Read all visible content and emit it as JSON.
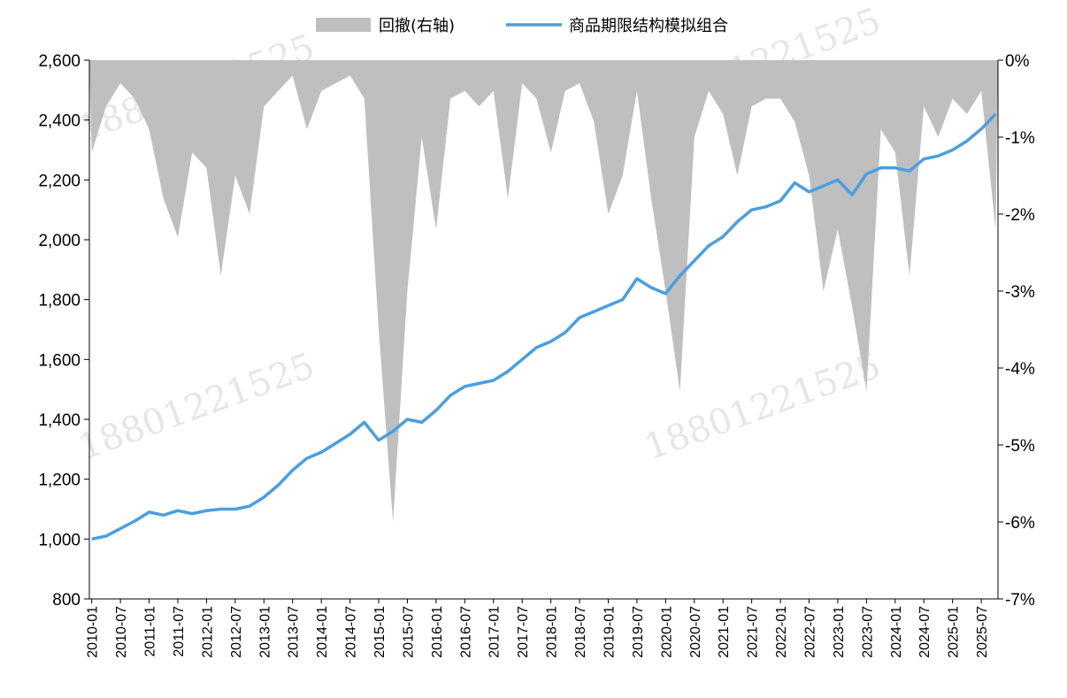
{
  "chart_data": {
    "type": "line",
    "title": "",
    "watermark": "18801221525",
    "legend": {
      "placement": "top-center",
      "items": [
        {
          "key": "drawdown",
          "label": "回撤(右轴)",
          "kind": "area",
          "color": "#bfbfbf"
        },
        {
          "key": "nav",
          "label": "商品期限结构模拟组合",
          "kind": "line",
          "color": "#4a9fe0"
        }
      ]
    },
    "y_left": {
      "range": [
        800,
        2600
      ],
      "ticks": [
        800,
        1000,
        1200,
        1400,
        1600,
        1800,
        2000,
        2200,
        2400,
        2600
      ],
      "tick_labels": [
        "800",
        "1,000",
        "1,200",
        "1,400",
        "1,600",
        "1,800",
        "2,000",
        "2,200",
        "2,400",
        "2,600"
      ]
    },
    "y_right": {
      "range": [
        -7,
        0
      ],
      "ticks": [
        0,
        -1,
        -2,
        -3,
        -4,
        -5,
        -6,
        -7
      ],
      "tick_labels": [
        "0%",
        "-1%",
        "-2%",
        "-3%",
        "-4%",
        "-5%",
        "-6%",
        "-7%"
      ]
    },
    "x_axis": {
      "tick_labels": [
        "2010-01",
        "2010-07",
        "2011-01",
        "2011-07",
        "2012-01",
        "2012-07",
        "2013-01",
        "2013-07",
        "2014-01",
        "2014-07",
        "2015-01",
        "2015-07",
        "2016-01",
        "2016-07",
        "2017-01",
        "2017-07",
        "2018-01",
        "2018-07",
        "2019-01",
        "2019-07",
        "2020-01",
        "2020-07",
        "2021-01",
        "2021-07",
        "2022-01",
        "2022-07",
        "2023-01",
        "2023-07",
        "2024-01",
        "2024-07",
        "2025-01",
        "2025-07"
      ]
    },
    "series": [
      {
        "name": "商品期限结构模拟组合",
        "axis": "left",
        "x": [
          "2010-01",
          "2010-04",
          "2010-07",
          "2010-10",
          "2011-01",
          "2011-04",
          "2011-07",
          "2011-10",
          "2012-01",
          "2012-04",
          "2012-07",
          "2012-10",
          "2013-01",
          "2013-04",
          "2013-07",
          "2013-10",
          "2014-01",
          "2014-04",
          "2014-07",
          "2014-10",
          "2015-01",
          "2015-04",
          "2015-07",
          "2015-10",
          "2016-01",
          "2016-04",
          "2016-07",
          "2016-10",
          "2017-01",
          "2017-04",
          "2017-07",
          "2017-10",
          "2018-01",
          "2018-04",
          "2018-07",
          "2018-10",
          "2019-01",
          "2019-04",
          "2019-07",
          "2019-10",
          "2020-01",
          "2020-04",
          "2020-07",
          "2020-10",
          "2021-01",
          "2021-04",
          "2021-07",
          "2021-10",
          "2022-01",
          "2022-04",
          "2022-07",
          "2022-10",
          "2023-01",
          "2023-04",
          "2023-07",
          "2023-10",
          "2024-01",
          "2024-04",
          "2024-07",
          "2024-10",
          "2025-01",
          "2025-04",
          "2025-07",
          "2025-10"
        ],
        "values": [
          1000,
          1010,
          1035,
          1060,
          1090,
          1080,
          1095,
          1085,
          1095,
          1100,
          1100,
          1110,
          1140,
          1180,
          1230,
          1270,
          1290,
          1320,
          1350,
          1390,
          1330,
          1360,
          1400,
          1390,
          1430,
          1480,
          1510,
          1520,
          1530,
          1560,
          1600,
          1640,
          1660,
          1690,
          1740,
          1760,
          1780,
          1800,
          1870,
          1840,
          1820,
          1880,
          1930,
          1980,
          2010,
          2060,
          2100,
          2110,
          2130,
          2190,
          2160,
          2180,
          2200,
          2150,
          2220,
          2240,
          2240,
          2230,
          2270,
          2280,
          2300,
          2330,
          2370,
          2420
        ]
      },
      {
        "name": "回撤(右轴)",
        "axis": "right",
        "x": [
          "2010-01",
          "2010-04",
          "2010-07",
          "2010-10",
          "2011-01",
          "2011-04",
          "2011-07",
          "2011-10",
          "2012-01",
          "2012-04",
          "2012-07",
          "2012-10",
          "2013-01",
          "2013-04",
          "2013-07",
          "2013-10",
          "2014-01",
          "2014-04",
          "2014-07",
          "2014-10",
          "2015-01",
          "2015-04",
          "2015-07",
          "2015-10",
          "2016-01",
          "2016-04",
          "2016-07",
          "2016-10",
          "2017-01",
          "2017-04",
          "2017-07",
          "2017-10",
          "2018-01",
          "2018-04",
          "2018-07",
          "2018-10",
          "2019-01",
          "2019-04",
          "2019-07",
          "2019-10",
          "2020-01",
          "2020-04",
          "2020-07",
          "2020-10",
          "2021-01",
          "2021-04",
          "2021-07",
          "2021-10",
          "2022-01",
          "2022-04",
          "2022-07",
          "2022-10",
          "2023-01",
          "2023-04",
          "2023-07",
          "2023-10",
          "2024-01",
          "2024-04",
          "2024-07",
          "2024-10",
          "2025-01",
          "2025-04",
          "2025-07",
          "2025-10"
        ],
        "values": [
          -1.2,
          -0.6,
          -0.3,
          -0.5,
          -0.9,
          -1.8,
          -2.3,
          -1.2,
          -1.4,
          -2.8,
          -1.5,
          -2.0,
          -0.6,
          -0.4,
          -0.2,
          -0.9,
          -0.4,
          -0.3,
          -0.2,
          -0.5,
          -3.5,
          -6.0,
          -3.0,
          -1.0,
          -2.2,
          -0.5,
          -0.4,
          -0.6,
          -0.4,
          -1.8,
          -0.3,
          -0.5,
          -1.2,
          -0.4,
          -0.3,
          -0.8,
          -2.0,
          -1.5,
          -0.4,
          -1.8,
          -3.0,
          -4.3,
          -1.0,
          -0.4,
          -0.7,
          -1.5,
          -0.6,
          -0.5,
          -0.5,
          -0.8,
          -1.5,
          -3.0,
          -2.2,
          -3.2,
          -4.3,
          -0.9,
          -1.2,
          -2.8,
          -0.6,
          -1.0,
          -0.5,
          -0.7,
          -0.4,
          -2.2
        ]
      }
    ]
  }
}
